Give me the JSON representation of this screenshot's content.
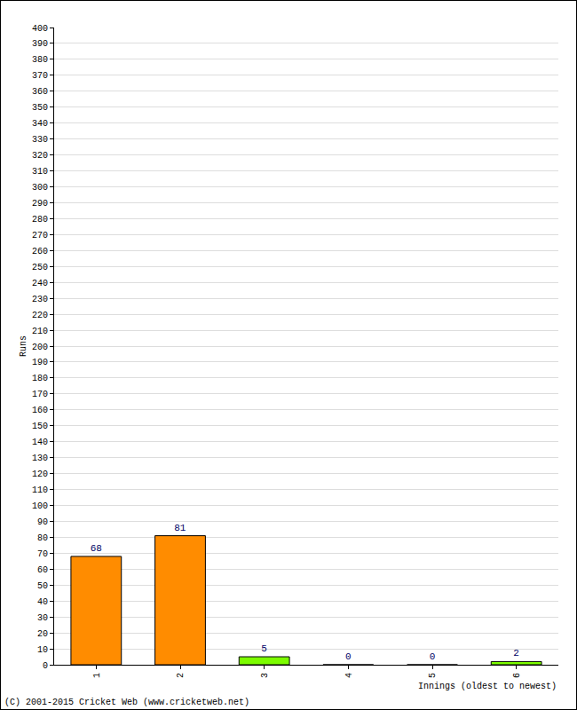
{
  "chart_data": {
    "type": "bar",
    "x_label": "Innings (oldest to newest)",
    "y_label": "Runs",
    "annotations": [
      "(C) 2001-2015 Cricket Web (www.cricketweb.net)"
    ],
    "categories": [
      "1",
      "2",
      "3",
      "4",
      "5",
      "6"
    ],
    "values": [
      68,
      81,
      5,
      0,
      0,
      2
    ],
    "colors": [
      "#ff8c00",
      "#ff8c00",
      "#7cfc00",
      "#7cfc00",
      "#7cfc00",
      "#7cfc00"
    ],
    "ylim": [
      0,
      400
    ],
    "yticks": [
      0,
      10,
      20,
      30,
      40,
      50,
      60,
      70,
      80,
      90,
      100,
      110,
      120,
      130,
      140,
      150,
      160,
      170,
      180,
      190,
      200,
      210,
      220,
      230,
      240,
      250,
      260,
      270,
      280,
      290,
      300,
      310,
      320,
      330,
      340,
      350,
      360,
      370,
      380,
      390,
      400
    ],
    "grid": true,
    "data_labels": true
  }
}
